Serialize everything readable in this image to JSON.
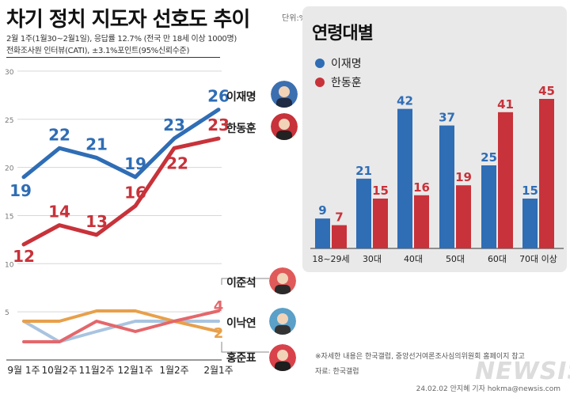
{
  "header": {
    "title": "차기 정치 지도자 선호도 추이",
    "unit": "단위:%",
    "subtitle1": "2월 1주(1월30~2월1일), 응답률 12.7% (전국 만 18세 이상 1000명)",
    "subtitle2": "전화조사원 인터뷰(CATI), ±3.1%포인트(95%신뢰수준)"
  },
  "colors": {
    "lee": "#2f6db5",
    "han": "#c8323a",
    "lee_jun": "#e8a04a",
    "lee_nak": "#a9c4e0",
    "hong": "#e4676b"
  },
  "candidates": {
    "lee": "이재명",
    "han": "한동훈",
    "lee_jun": "이준석",
    "lee_nak": "이낙연",
    "hong": "홍준표"
  },
  "chart_data": [
    {
      "type": "line",
      "x": [
        "9월 1주",
        "10월2주",
        "11월2주",
        "12월1주",
        "1월2주",
        "2월1주"
      ],
      "ylim": [
        0,
        30
      ],
      "yticks": [
        5,
        10,
        15,
        20,
        25,
        30
      ],
      "series": [
        {
          "name": "이재명",
          "values": [
            19,
            22,
            21,
            19,
            23,
            26
          ],
          "labels": [
            "19",
            "22",
            "21",
            "19",
            "23",
            "26"
          ]
        },
        {
          "name": "한동훈",
          "values": [
            12,
            14,
            13,
            16,
            22,
            23
          ],
          "labels": [
            "12",
            "14",
            "13",
            "16",
            "22",
            "23"
          ]
        },
        {
          "name": "이준석",
          "values": [
            3,
            3,
            4,
            4,
            3,
            2
          ],
          "end_label": "2"
        },
        {
          "name": "이낙연",
          "values": [
            3,
            1,
            2,
            3,
            3,
            3
          ]
        },
        {
          "name": "홍준표",
          "values": [
            1,
            1,
            3,
            2,
            3,
            4
          ],
          "end_label": "4"
        }
      ]
    },
    {
      "type": "bar",
      "title": "연령대별",
      "categories": [
        "18~29세",
        "30대",
        "40대",
        "50대",
        "60대",
        "70대 이상"
      ],
      "series": [
        {
          "name": "이재명",
          "values": [
            9,
            21,
            42,
            37,
            25,
            15
          ]
        },
        {
          "name": "한동훈",
          "values": [
            7,
            15,
            16,
            19,
            41,
            45
          ]
        }
      ]
    }
  ],
  "footnote": "※자세한 내용은 한국갤럽, 중앙선거여론조사심의위원회 홈페이지 참고",
  "source": "자료: 한국갤럽",
  "credit": "24.02.02 안지혜 기자 hokma@newsis.com",
  "brand": "NEWSIS"
}
